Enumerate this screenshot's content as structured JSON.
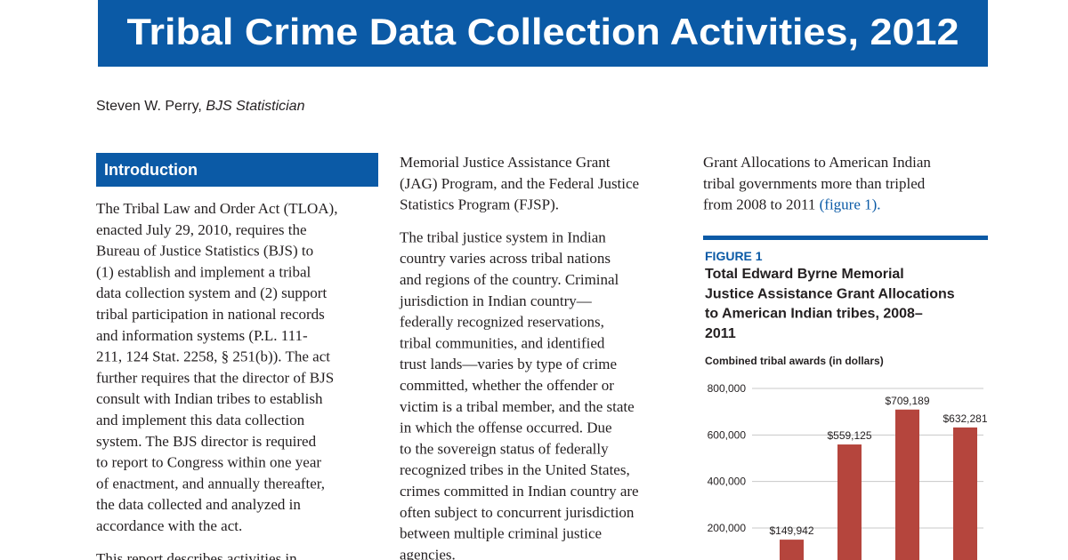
{
  "header": {
    "title": "Tribal Crime Data Collection Activities, 2012"
  },
  "author": {
    "name": "Steven W. Perry,",
    "role": "BJS Statistician"
  },
  "columns": [
    {
      "heading": "Introduction",
      "paragraphs": [
        [
          "The Tribal Law and Order Act (TLOA),",
          "enacted July 29, 2010, requires the",
          "Bureau of Justice Statistics (BJS) to",
          "(1) establish and implement a tribal",
          "data collection system and (2) support",
          "tribal participation in national records",
          "and information systems (P.L. 111-",
          "211, 124 Stat. 2258, § 251(b)). The act",
          "further requires that the director of BJS",
          "consult with Indian tribes to establish",
          "and implement this data collection",
          "system. The BJS director is required",
          "to report to Congress within one year",
          "of enactment, and annually thereafter,",
          "the data collected and analyzed in",
          "accordance with the act."
        ],
        [
          "This report describes activities in"
        ]
      ]
    },
    {
      "paragraphs": [
        [
          "Memorial Justice Assistance Grant",
          "(JAG) Program, and the Federal Justice",
          "Statistics Program (FJSP)."
        ],
        [
          "The tribal justice system in Indian",
          "country varies across tribal nations",
          "and regions of the country. Criminal",
          "jurisdiction in Indian country—",
          "federally recognized reservations,",
          "tribal communities, and identified",
          "trust lands—varies by type of crime",
          "committed, whether the offender or",
          "victim is a tribal member, and the state",
          "in which the offense occurred. Due",
          "to the sovereign status of federally",
          "recognized tribes in the United States,",
          "crimes committed in Indian country are",
          "often subject to concurrent jurisdiction",
          "between multiple criminal justice",
          "agencies."
        ]
      ]
    },
    {
      "paragraphs": [
        [
          "Grant Allocations to American Indian",
          "tribal governments more than tripled",
          "from 2008 to 2011"
        ]
      ],
      "link": "(figure 1)."
    }
  ],
  "figure": {
    "label": "FIGURE 1",
    "title_lines": [
      "Total Edward Byrne Memorial",
      "Justice Assistance Grant Allocations",
      "to American Indian tribes, 2008–",
      "2011"
    ],
    "chart": {
      "type": "bar",
      "y_axis_label": "Combined tribal awards (in dollars)",
      "categories": [
        null,
        null,
        null,
        null
      ],
      "values": [
        149942,
        559125,
        709189,
        632281
      ],
      "value_labels": [
        "$149,942",
        "$559,125",
        "$709,189",
        "$632,281"
      ],
      "color": "#b5453d",
      "grid": true,
      "ylim": [
        0,
        800000
      ],
      "yticks": [
        {
          "value": 200000,
          "label": "200,000"
        },
        {
          "value": 400000,
          "label": "400,000"
        },
        {
          "value": 600000,
          "label": "600,000"
        },
        {
          "value": 800000,
          "label": "800,000"
        }
      ]
    }
  }
}
